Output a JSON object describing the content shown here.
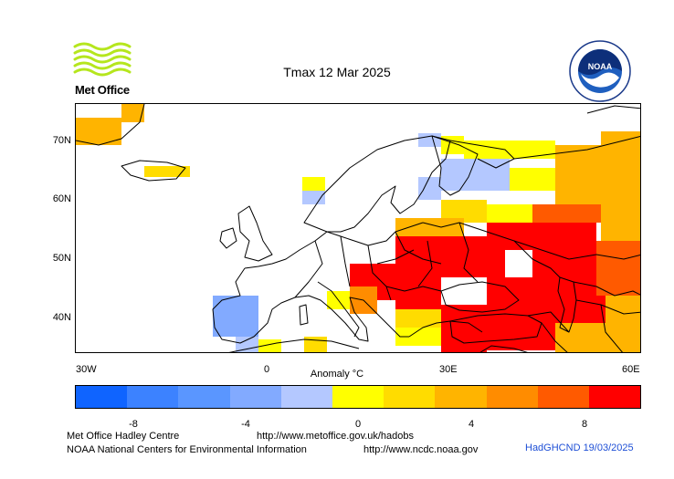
{
  "title": "Tmax 12 Mar 2025",
  "logos": {
    "metoffice": "Met Office",
    "noaa": "NOAA"
  },
  "axes": {
    "latitude_labels": [
      "70N",
      "60N",
      "50N",
      "40N"
    ],
    "longitude_labels": [
      "30W",
      "0",
      "30E",
      "60E"
    ]
  },
  "colorbar": {
    "title": "Anomaly °C",
    "tick_labels": [
      "-8",
      "-4",
      "0",
      "4",
      "8"
    ],
    "colors": [
      "#0f64ff",
      "#3c82ff",
      "#5a96ff",
      "#82aaff",
      "#b4c8ff",
      "#ffff00",
      "#ffdc00",
      "#ffb400",
      "#ff8c00",
      "#ff5a00",
      "#ff0000"
    ]
  },
  "footer": {
    "line1_org": "Met Office Hadley Centre",
    "line1_url": "http://www.metoffice.gov.uk/hadobs",
    "line2_org": "NOAA National Centers for Environmental Information",
    "line2_url": "http://www.ncdc.noaa.gov",
    "credit": "HadGHCND 19/03/2025"
  }
}
